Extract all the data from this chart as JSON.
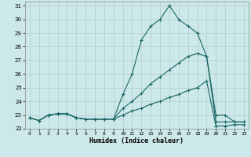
{
  "xlabel": "Humidex (Indice chaleur)",
  "background_color": "#cce8e8",
  "line_color": "#1a6666",
  "grid_color": "#b0cccc",
  "xlim": [
    -0.5,
    23.5
  ],
  "ylim": [
    22,
    31.3
  ],
  "xticks": [
    0,
    1,
    2,
    3,
    4,
    5,
    6,
    7,
    8,
    9,
    10,
    11,
    12,
    13,
    14,
    15,
    16,
    17,
    18,
    19,
    20,
    21,
    22,
    23
  ],
  "yticks": [
    22,
    23,
    24,
    25,
    26,
    27,
    28,
    29,
    30,
    31
  ],
  "hours": [
    0,
    1,
    2,
    3,
    4,
    5,
    6,
    7,
    8,
    9,
    10,
    11,
    12,
    13,
    14,
    15,
    16,
    17,
    18,
    19,
    20,
    21,
    22,
    23
  ],
  "line1": [
    22.8,
    22.6,
    23.0,
    23.1,
    23.1,
    22.8,
    22.7,
    22.7,
    22.7,
    22.7,
    24.5,
    26.0,
    28.5,
    29.5,
    30.0,
    31.0,
    30.0,
    29.5,
    29.0,
    27.3,
    23.0,
    23.0,
    22.5,
    22.5
  ],
  "line2": [
    22.8,
    22.6,
    23.0,
    23.1,
    23.1,
    22.8,
    22.7,
    22.7,
    22.7,
    22.7,
    23.5,
    24.0,
    24.6,
    25.3,
    25.8,
    26.3,
    26.8,
    27.3,
    27.5,
    27.3,
    22.5,
    22.5,
    22.5,
    22.5
  ],
  "line3": [
    22.8,
    22.6,
    23.0,
    23.1,
    23.1,
    22.8,
    22.7,
    22.7,
    22.7,
    22.7,
    23.0,
    23.3,
    23.5,
    23.8,
    24.0,
    24.3,
    24.5,
    24.8,
    25.0,
    25.5,
    22.2,
    22.2,
    22.3,
    22.3
  ]
}
